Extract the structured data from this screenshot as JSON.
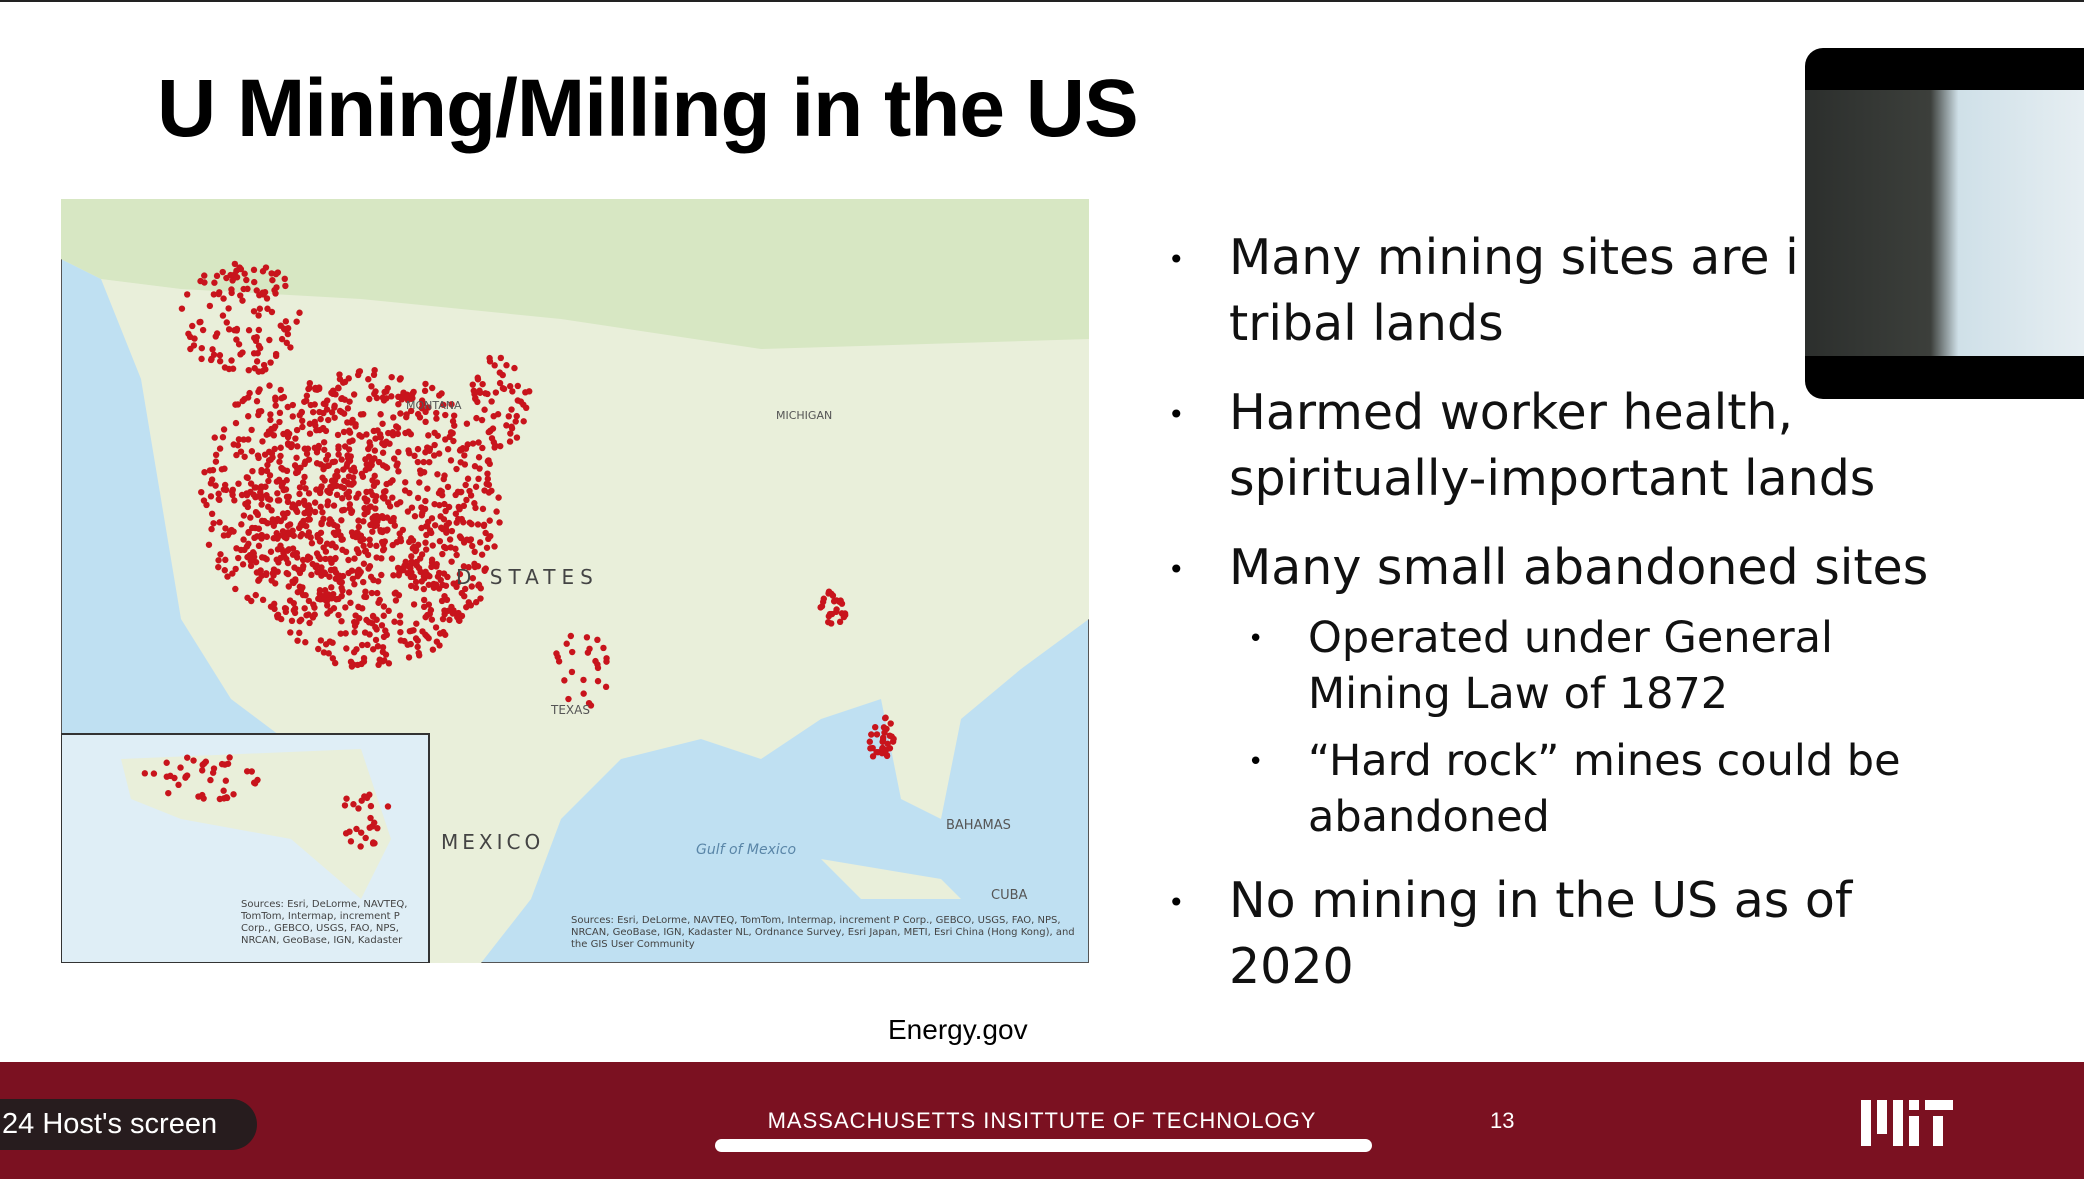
{
  "slide": {
    "title": "U Mining/Milling in the US",
    "map_labels": [
      "MEXICO",
      "BAHAMAS",
      "CUBA",
      "Gulf of Mexico",
      "D  STATES",
      "TEXAS",
      "MONTANA",
      "MICHIGAN"
    ],
    "map_sources": [
      "Sources: Esri, DeLorme, NAVTEQ, TomTom, Intermap, increment P Corp., GEBCO, USGS, FAO, NPS, NRCAN, GeoBase, IGN, Kadaster",
      "Sources: Esri, DeLorme, NAVTEQ, TomTom, Intermap, increment P Corp., GEBCO, USGS, FAO, NPS, NRCAN, GeoBase, IGN, Kadaster NL, Ordnance Survey, Esri Japan, METI, Esri China (Hong Kong), and the GIS User Community"
    ],
    "bullets": [
      {
        "text": [
          "Many mining sites are i",
          "tribal lands"
        ]
      },
      {
        "text": [
          "Harmed worker health,",
          "spiritually-important lands"
        ]
      },
      {
        "text": [
          "Many small abandoned sites"
        ],
        "sub": [
          [
            "Operated under General",
            "Mining Law of 1872"
          ],
          [
            "“Hard rock” mines could be",
            "abandoned"
          ]
        ]
      },
      {
        "text": [
          "No mining in the US as of",
          "2020"
        ]
      }
    ],
    "source": "Energy.gov",
    "footer": "MASSACHUSETTS INSITTUTE OF TECHNOLOGY",
    "page_number": "13"
  },
  "overlay": {
    "screen_label": "24 Host's screen"
  }
}
